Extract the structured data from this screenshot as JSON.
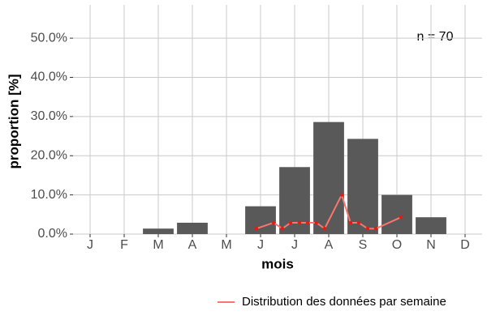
{
  "chart_data": {
    "type": "bar",
    "x_label": "mois",
    "y_label": "proportion [%]",
    "annotation": "n = 70",
    "categories": [
      "J",
      "F",
      "M",
      "A",
      "M",
      "J",
      "J",
      "A",
      "S",
      "O",
      "N",
      "D"
    ],
    "values": [
      0,
      0,
      1.4,
      2.9,
      0,
      7.1,
      17.1,
      28.6,
      24.3,
      10.0,
      4.3,
      0
    ],
    "color": "#595959",
    "line": {
      "name": "Distribution des données par semaine",
      "color": "#f8766d",
      "point_color": "#e8190f",
      "x": [
        5.88,
        6.38,
        6.64,
        6.88,
        7.14,
        7.38,
        7.64,
        7.88,
        8.38,
        8.64,
        8.88,
        9.14,
        9.38,
        10.12
      ],
      "values": [
        1.4,
        2.9,
        1.4,
        2.9,
        2.9,
        2.9,
        2.9,
        1.4,
        10.0,
        2.9,
        2.9,
        1.4,
        1.4,
        4.3
      ]
    },
    "xlim": [
      0.5,
      12.5
    ],
    "ylim": [
      0,
      58.5
    ],
    "yticks": [
      {
        "value": 0,
        "label": "0.0%"
      },
      {
        "value": 10,
        "label": "10.0%"
      },
      {
        "value": 20,
        "label": "20.0%"
      },
      {
        "value": 30,
        "label": "30.0%"
      },
      {
        "value": 40,
        "label": "40.0%"
      },
      {
        "value": 50,
        "label": "50.0%"
      }
    ],
    "grid": true
  }
}
